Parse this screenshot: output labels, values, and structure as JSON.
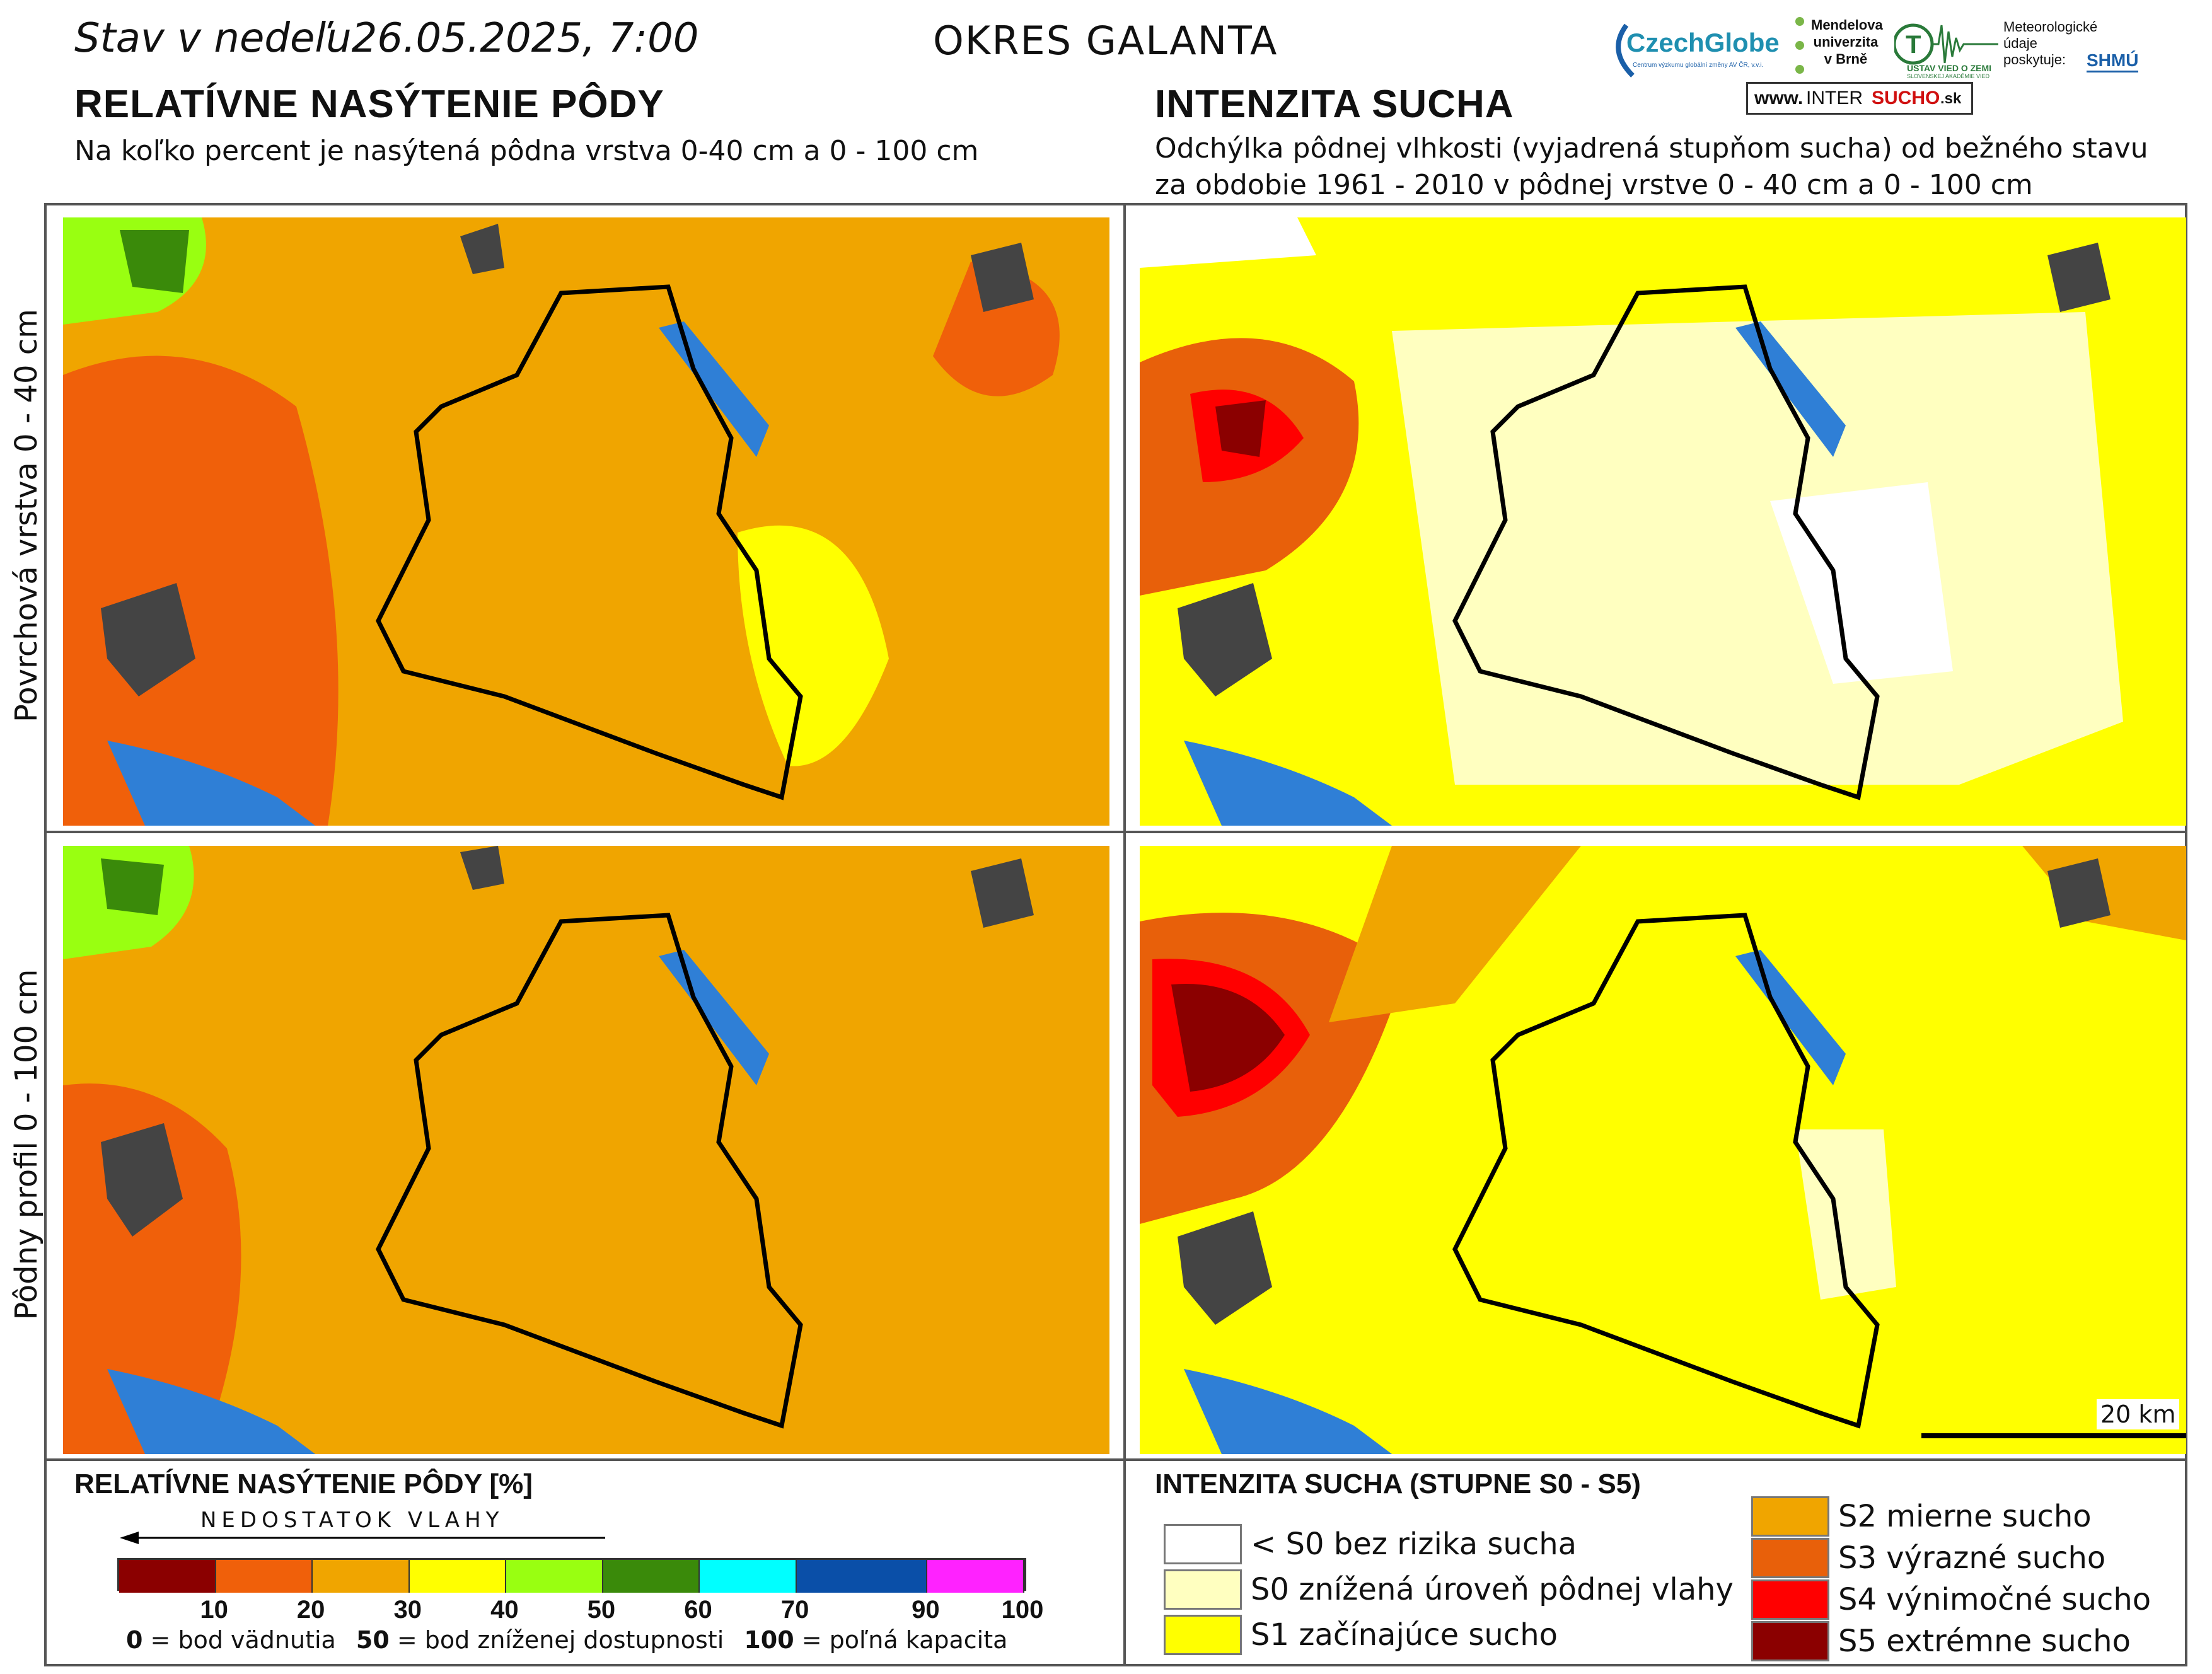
{
  "header": {
    "date": "Stav v nedeľu26.05.2025, 7:00",
    "district": "OKRES  GALANTA"
  },
  "logos": {
    "czechglobe": "CzechGlobe",
    "czechglobe_sub": "Centrum výzkumu globální změny AV ČR, v.v.i.",
    "mendel": "Mendelova univerzita v Brně",
    "uvz": "ÚSTAV VIED O ZEMI",
    "uvz_sub": "SLOVENSKEJ AKADÉMIE VIED",
    "meteo": "Meteorologické údaje poskytuje:",
    "shmu": "SHMÚ",
    "intersucho_www": "www.",
    "intersucho_inter": "INTER",
    "intersucho_sucho": "SUCHO",
    "intersucho_sk": ".sk"
  },
  "left_section": {
    "title": "RELATÍVNE NASÝTENIE PÔDY",
    "subtitle": "Na koľko percent je nasýtená pôdna vrstva 0-40 cm a 0 - 100 cm"
  },
  "right_section": {
    "title": "INTENZITA SUCHA",
    "subtitle_line1": "Odchýlka pôdnej vlhkosti (vyjadrená stupňom sucha) od bežného stavu",
    "subtitle_line2": "za obdobie 1961 - 2010 v pôdnej vrstve 0 - 40 cm a 0 - 100 cm"
  },
  "row_labels": {
    "top": "Povrchová vrstva 0 - 40 cm",
    "bottom": "Pôdny profil 0 - 100 cm"
  },
  "scale_bar": "20 km",
  "legend_saturation": {
    "title": "RELATÍVNE NASÝTENIE PÔDY [%]",
    "arrow_label": "NEDOSTATOK VLAHY",
    "bins": [
      {
        "from": 0,
        "to": 10,
        "color": "#8b0000"
      },
      {
        "from": 10,
        "to": 20,
        "color": "#f0600a"
      },
      {
        "from": 20,
        "to": 30,
        "color": "#f0a500"
      },
      {
        "from": 30,
        "to": 40,
        "color": "#ffff00"
      },
      {
        "from": 40,
        "to": 50,
        "color": "#99ff11"
      },
      {
        "from": 50,
        "to": 60,
        "color": "#3a8a0a"
      },
      {
        "from": 60,
        "to": 70,
        "color": "#00ffff"
      },
      {
        "from": 70,
        "to": 90,
        "color": "#0a4fa8"
      },
      {
        "from": 90,
        "to": 100,
        "color": "#ff22ff"
      }
    ],
    "ticks": [
      "10",
      "20",
      "30",
      "40",
      "50",
      "60",
      "70",
      "90",
      "100"
    ],
    "note_0": "0",
    "note_0_text": " = bod vädnutia",
    "note_50": "50",
    "note_50_text": " = bod zníženej dostupnosti",
    "note_100": "100",
    "note_100_text": " = poľná kapacita"
  },
  "legend_drought": {
    "title": "INTENZITA SUCHA (STUPNE S0 - S5)",
    "classes": [
      {
        "label": "< S0 bez rizika sucha",
        "color": "#ffffff"
      },
      {
        "label": "S0 znížená úroveň pôdnej vlahy",
        "color": "#ffffc0"
      },
      {
        "label": "S1 začínajúce sucho",
        "color": "#ffff00"
      },
      {
        "label": "S2 mierne sucho",
        "color": "#f0a500"
      },
      {
        "label": "S3 výrazné sucho",
        "color": "#e8600a"
      },
      {
        "label": "S4 výnimočné sucho",
        "color": "#ff0000"
      },
      {
        "label": "S5 extrémne sucho",
        "color": "#8b0000"
      }
    ]
  }
}
